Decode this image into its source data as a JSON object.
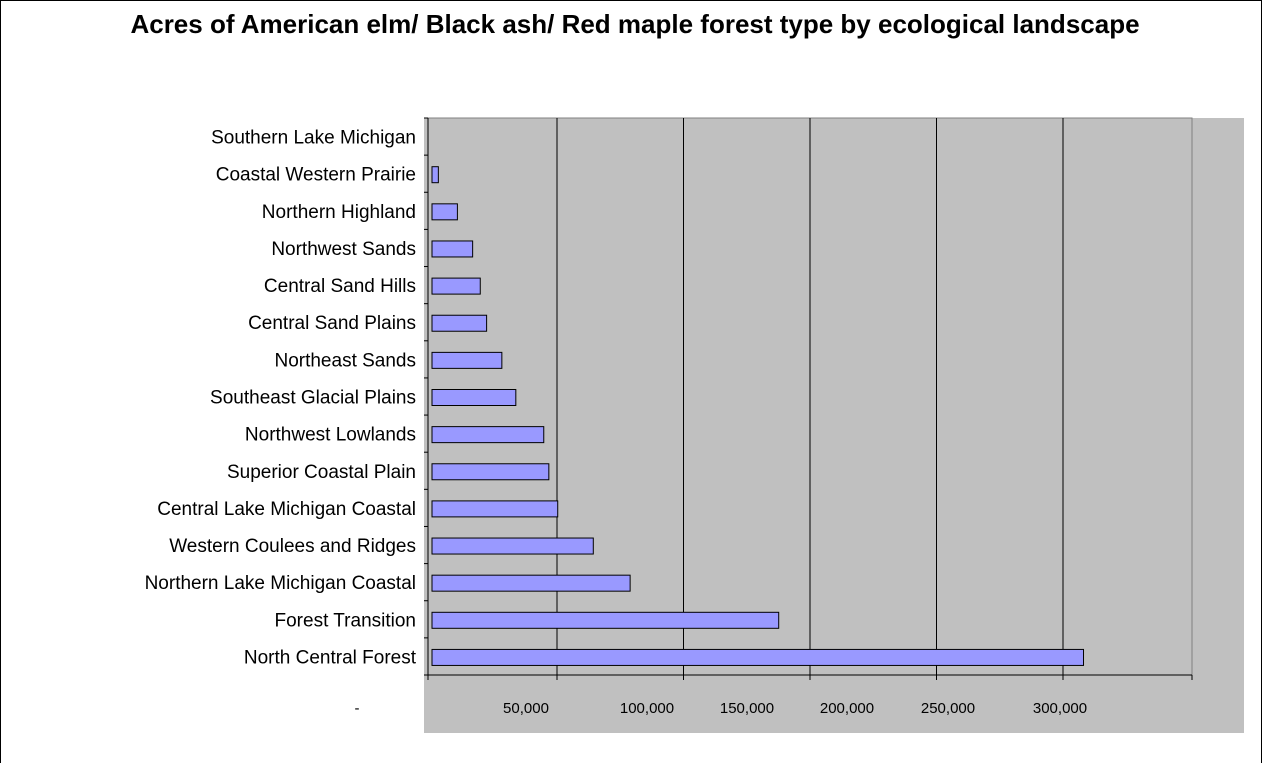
{
  "chart_data": {
    "type": "bar",
    "orientation": "horizontal",
    "title": "Acres of American elm/ Black ash/ Red maple forest type by ecological landscape",
    "categories": [
      "Southern Lake Michigan",
      "Coastal Western Prairie",
      "Northern Highland",
      "Northwest Sands",
      "Central Sand Hills",
      "Central Sand Plains",
      "Northeast Sands",
      "Southeast Glacial Plains",
      "Northwest Lowlands",
      "Superior Coastal Plain",
      "Central Lake Michigan Coastal",
      "Western Coulees and Ridges",
      "Northern Lake Michigan Coastal",
      "Forest Transition",
      "North Central Forest"
    ],
    "values": [
      0,
      2500,
      10000,
      16000,
      19000,
      21500,
      27500,
      33000,
      44000,
      46000,
      49500,
      63500,
      78000,
      136500,
      256500
    ],
    "x_tick_labels": [
      "-",
      "50,000",
      "100,000",
      "150,000",
      "200,000",
      "250,000",
      "300,000"
    ],
    "xlim": [
      0,
      305000
    ],
    "colors": {
      "bar_fill": "#9999ff",
      "bar_stroke": "#000000",
      "plot_background": "#c0c0c0"
    },
    "grid": "vertical",
    "legend": "none"
  }
}
